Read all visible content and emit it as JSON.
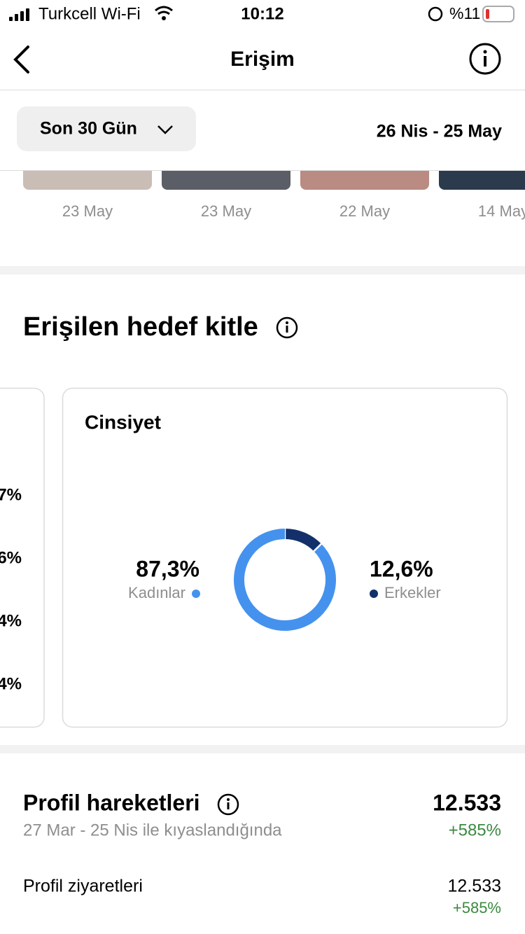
{
  "status_bar": {
    "carrier": "Turkcell Wi-Fi",
    "time": "10:12",
    "battery": "%11"
  },
  "header": {
    "title": "Erişim"
  },
  "filter": {
    "period": "Son 30 Gün",
    "range": "26 Nis - 25 May"
  },
  "thumbnails": {
    "dates": [
      "23 May",
      "23 May",
      "22 May",
      "14 May"
    ]
  },
  "audience": {
    "title": "Erişilen hedef kitle",
    "left_card": {
      "labels": [
        "7%",
        "6%",
        "4%",
        "4%"
      ]
    },
    "gender": {
      "type": "donut",
      "title": "Cinsiyet",
      "categories": [
        "Kadınlar",
        "Erkekler"
      ],
      "values": [
        87.3,
        12.6
      ],
      "value_labels": [
        "87,3%",
        "12,6%"
      ],
      "colors": [
        "#4592ee",
        "#13306a"
      ]
    }
  },
  "profile": {
    "title": "Profil hareketleri",
    "subtitle": "27 Mar - 25 Nis ile kıyaslandığında",
    "total": "12.533",
    "change": "+585%",
    "rows": [
      {
        "label": "Profil ziyaretleri",
        "value": "12.533",
        "change": "+585%"
      }
    ]
  }
}
